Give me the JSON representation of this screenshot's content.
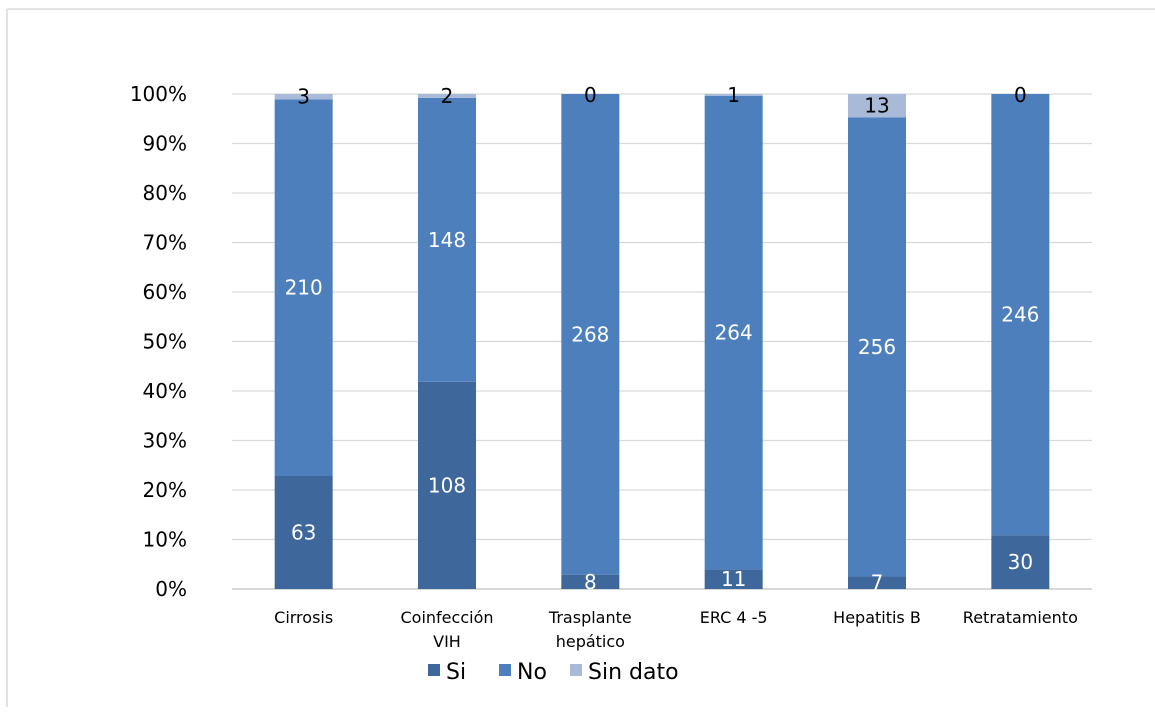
{
  "chart_data": {
    "type": "bar",
    "stacked": "percent",
    "title": "",
    "xlabel": "",
    "ylabel": "",
    "ylim": [
      0,
      100
    ],
    "yticks": [
      "0%",
      "10%",
      "20%",
      "30%",
      "40%",
      "50%",
      "60%",
      "70%",
      "80%",
      "90%",
      "100%"
    ],
    "grid": true,
    "legend": "bottom",
    "categories": [
      [
        "Cirrosis"
      ],
      [
        "Coinfección",
        "VIH"
      ],
      [
        "Trasplante",
        "hepático"
      ],
      [
        "ERC 4 -5"
      ],
      [
        "Hepatitis B"
      ],
      [
        "Retratamiento"
      ]
    ],
    "series": [
      {
        "name": "Si",
        "color": "#3e679c",
        "label_color": "#ffffff",
        "values": [
          63,
          108,
          8,
          11,
          7,
          30
        ]
      },
      {
        "name": "No",
        "color": "#4e7fbd",
        "label_color": "#ffffff",
        "values": [
          210,
          148,
          268,
          264,
          256,
          246
        ]
      },
      {
        "name": "Sin dato",
        "color": "#a9b9d8",
        "label_color": "#000000",
        "values": [
          3,
          2,
          0,
          1,
          13,
          0
        ]
      }
    ]
  }
}
